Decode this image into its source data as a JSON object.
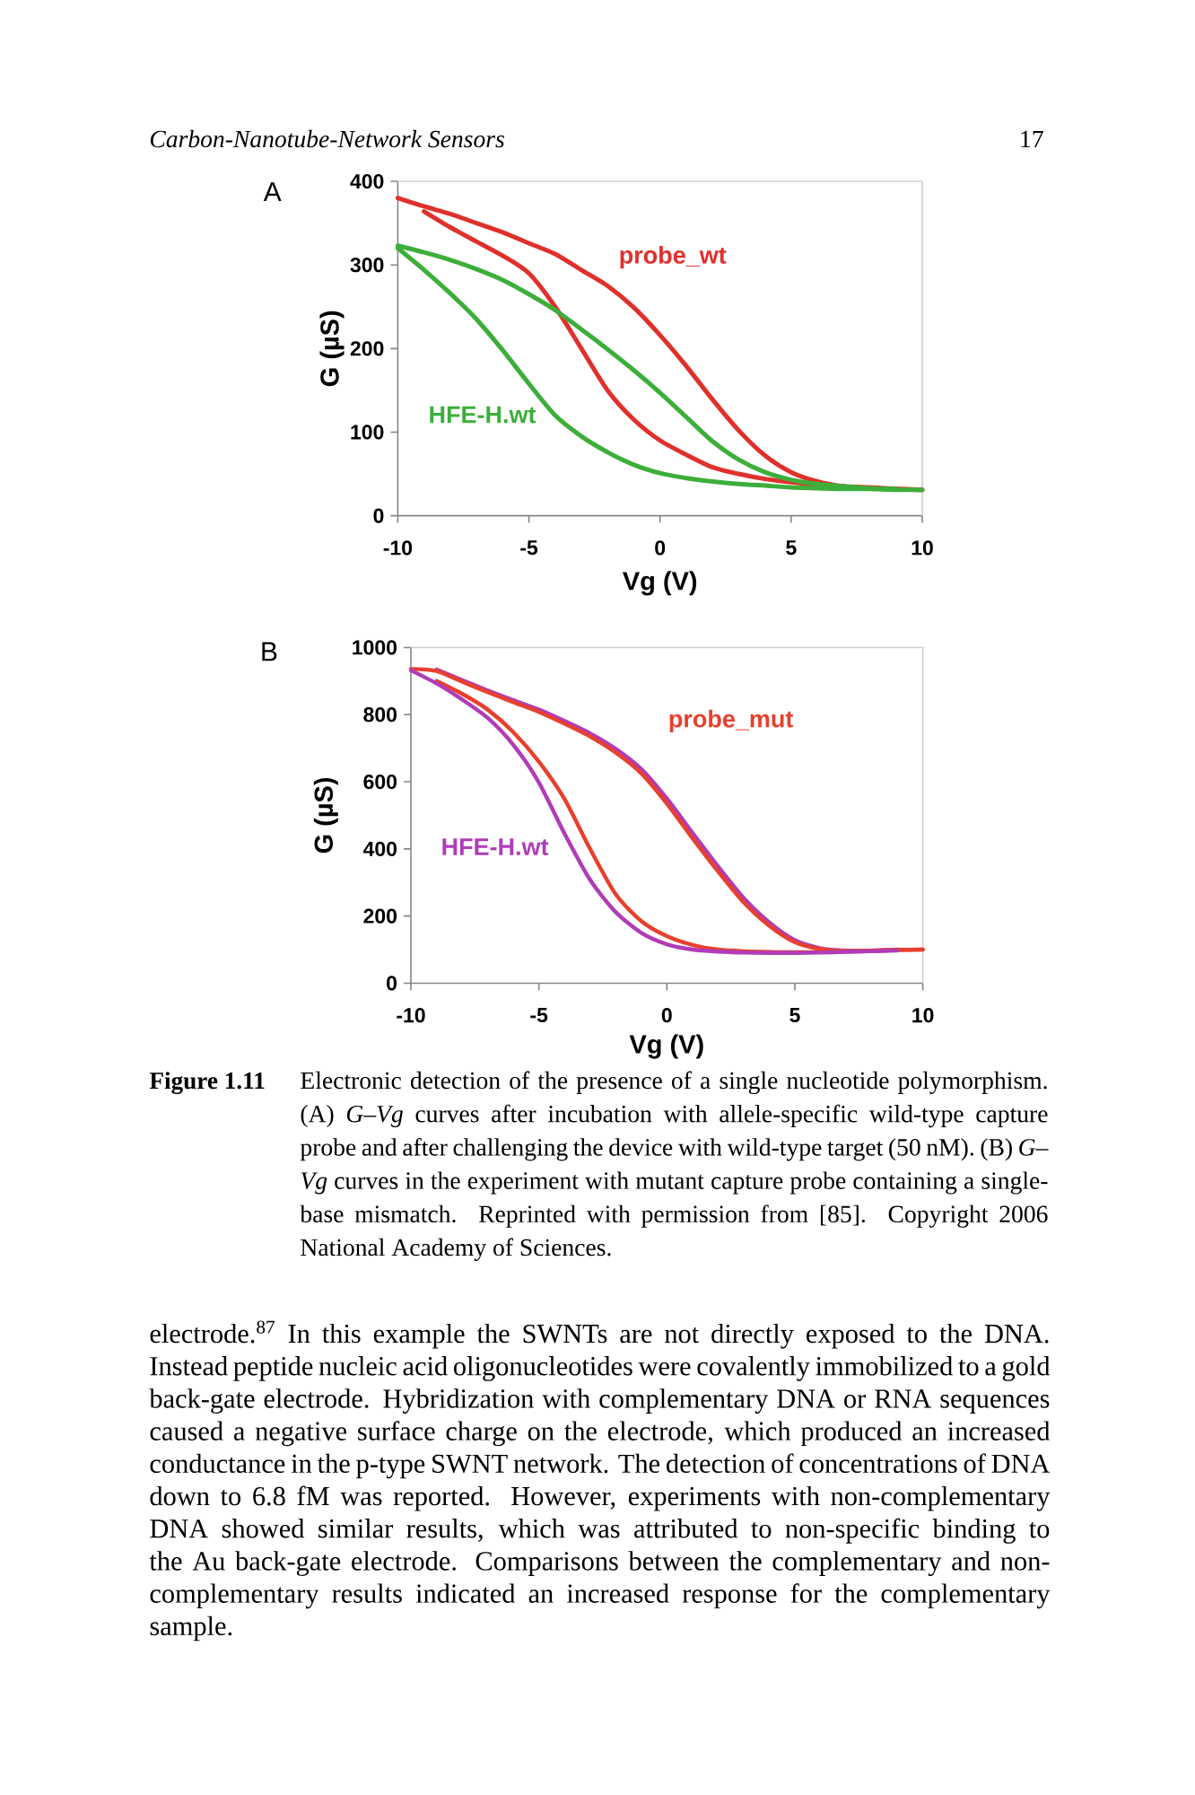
{
  "chart_data": [
    {
      "type": "line",
      "title": "A",
      "xlabel": "Vg (V)",
      "ylabel": "G (µS)",
      "xlim": [
        -10,
        10
      ],
      "ylim": [
        0,
        400
      ],
      "xticks": [
        -10,
        -5,
        0,
        5,
        10
      ],
      "yticks": [
        0,
        100,
        200,
        300,
        400
      ],
      "marker": "none",
      "line_style": "solid",
      "x": [
        -10,
        -9,
        -8,
        -7,
        -6,
        -5,
        -4,
        -3,
        -2,
        -1,
        0,
        1,
        2,
        3,
        4,
        5,
        6,
        7,
        8,
        9,
        10
      ],
      "series": [
        {
          "name": "probe_wt",
          "color": "#e0302c",
          "values": [
            380,
            370,
            361,
            350,
            339,
            326,
            313,
            294,
            275,
            249,
            216,
            179,
            139,
            102,
            72,
            52,
            41,
            35,
            33,
            32,
            31
          ]
        },
        {
          "color": "#e0302c",
          "values": [
            null,
            364,
            345,
            328,
            311,
            290,
            250,
            200,
            150,
            115,
            90,
            73,
            58,
            50,
            44,
            40,
            37,
            35,
            34,
            32,
            31
          ]
        },
        {
          "color": "#3cae3a",
          "values": [
            323,
            315,
            306,
            295,
            282,
            265,
            246,
            223,
            199,
            174,
            147,
            118,
            89,
            67,
            52,
            43,
            38,
            35,
            33,
            32,
            null
          ]
        },
        {
          "name": "HFE-H.wt",
          "color": "#3cae3a",
          "values": [
            320,
            294,
            266,
            235,
            198,
            158,
            120,
            95,
            76,
            61,
            51,
            45,
            41,
            38,
            36,
            34,
            33,
            32,
            32,
            31,
            31
          ]
        }
      ],
      "annotations": [
        "Carbon-Nanotube-Network Sensors",
        "17"
      ]
    },
    {
      "type": "line",
      "title": "B",
      "xlabel": "Vg (V)",
      "ylabel": "G (µS)",
      "xlim": [
        -10,
        10
      ],
      "ylim": [
        0,
        1000
      ],
      "xticks": [
        -10,
        -5,
        0,
        5,
        10
      ],
      "yticks": [
        0,
        200,
        400,
        600,
        800,
        1000
      ],
      "marker": "none",
      "line_style": "solid",
      "x": [
        -10,
        -9,
        -8,
        -7,
        -6,
        -5,
        -4,
        -3,
        -2,
        -1,
        0,
        1,
        2,
        3,
        4,
        5,
        6,
        7,
        8,
        9,
        10
      ],
      "series": [
        {
          "color": "#b03cb8",
          "values": [
            null,
            934,
            903,
            872,
            843,
            815,
            781,
            744,
            698,
            638,
            550,
            448,
            348,
            254,
            181,
            128,
            104,
            97,
            97,
            100,
            null
          ]
        },
        {
          "name": "probe_mut",
          "color": "#e8402e",
          "values": [
            936,
            930,
            898,
            867,
            837,
            808,
            773,
            735,
            687,
            625,
            535,
            432,
            333,
            241,
            171,
            122,
            101,
            95,
            96,
            99,
            100
          ]
        },
        {
          "color": "#e8402e",
          "values": [
            null,
            900,
            862,
            815,
            748,
            660,
            549,
            400,
            265,
            185,
            140,
            114,
            100,
            95,
            93,
            92,
            93,
            95,
            97,
            99,
            100
          ]
        },
        {
          "name": "HFE-H.wt",
          "color": "#b03cb8",
          "values": [
            932,
            893,
            845,
            790,
            710,
            598,
            446,
            308,
            212,
            150,
            116,
            100,
            94,
            91,
            90,
            90,
            91,
            93,
            95,
            97,
            null
          ]
        }
      ],
      "annotations": [
        "Figure 1.11",
        "Electronic detection of the presence of a single nucleotide polymorphism. (A) *G–Vg* curves after incubation with allele-specific wild-type capture probe and after challenging the device with wild-type target (50 nM). (B) *G–Vg* curves in the experiment with mutant capture probe containing a single-base mismatch. Reprinted with permission from [85]. Copyright 2006 National Academy of Sciences.",
        "electrode.$^{87}$ In this example the SWNTs are not directly exposed to the DNA. Instead peptide nucleic acid oligonucleotides were covalently immobilized to a gold back-gate electrode. Hybridization with complementary DNA or RNA sequences caused a negative surface charge on the electrode, which produced an increased conductance in the p-type SWNT network. The detection of concentrations of DNA down to 6.8 fM was reported. However, experiments with non-complementary DNA showed similar results, which was attributed to non-specific binding to the Au back-gate electrode. Comparisons between the complementary and non-complementary results indicated an increased response for the complementary sample."
      ]
    }
  ]
}
